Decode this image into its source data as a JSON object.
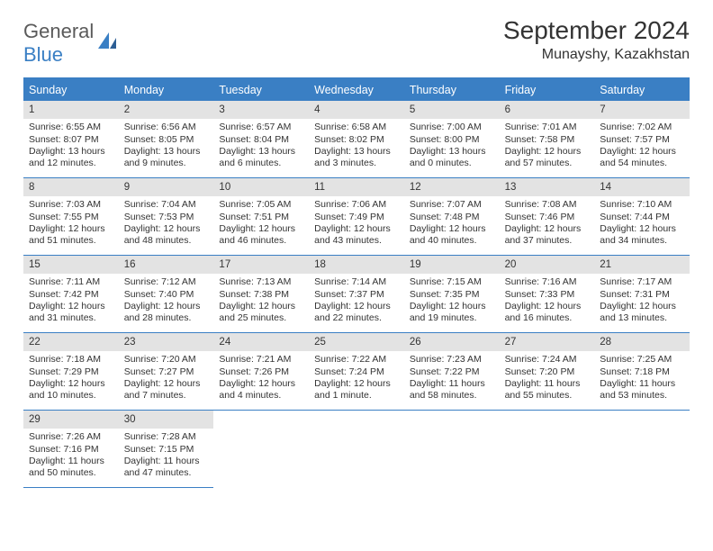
{
  "logo": {
    "part1": "General",
    "part2": "Blue"
  },
  "title": "September 2024",
  "location": "Munayshy, Kazakhstan",
  "colors": {
    "accent": "#3a7fc4",
    "header_bg": "#3a7fc4",
    "header_fg": "#ffffff",
    "daynum_bg": "#e3e3e3",
    "text": "#333333",
    "logo_gray": "#5a5a5a"
  },
  "fonts": {
    "title_size": 28,
    "location_size": 16,
    "dayheader_size": 12.5,
    "cell_size": 10.5,
    "daynum_size": 11.5
  },
  "day_headers": [
    "Sunday",
    "Monday",
    "Tuesday",
    "Wednesday",
    "Thursday",
    "Friday",
    "Saturday"
  ],
  "days": [
    {
      "n": "1",
      "sunrise": "6:55 AM",
      "sunset": "8:07 PM",
      "daylight": "13 hours and 12 minutes."
    },
    {
      "n": "2",
      "sunrise": "6:56 AM",
      "sunset": "8:05 PM",
      "daylight": "13 hours and 9 minutes."
    },
    {
      "n": "3",
      "sunrise": "6:57 AM",
      "sunset": "8:04 PM",
      "daylight": "13 hours and 6 minutes."
    },
    {
      "n": "4",
      "sunrise": "6:58 AM",
      "sunset": "8:02 PM",
      "daylight": "13 hours and 3 minutes."
    },
    {
      "n": "5",
      "sunrise": "7:00 AM",
      "sunset": "8:00 PM",
      "daylight": "13 hours and 0 minutes."
    },
    {
      "n": "6",
      "sunrise": "7:01 AM",
      "sunset": "7:58 PM",
      "daylight": "12 hours and 57 minutes."
    },
    {
      "n": "7",
      "sunrise": "7:02 AM",
      "sunset": "7:57 PM",
      "daylight": "12 hours and 54 minutes."
    },
    {
      "n": "8",
      "sunrise": "7:03 AM",
      "sunset": "7:55 PM",
      "daylight": "12 hours and 51 minutes."
    },
    {
      "n": "9",
      "sunrise": "7:04 AM",
      "sunset": "7:53 PM",
      "daylight": "12 hours and 48 minutes."
    },
    {
      "n": "10",
      "sunrise": "7:05 AM",
      "sunset": "7:51 PM",
      "daylight": "12 hours and 46 minutes."
    },
    {
      "n": "11",
      "sunrise": "7:06 AM",
      "sunset": "7:49 PM",
      "daylight": "12 hours and 43 minutes."
    },
    {
      "n": "12",
      "sunrise": "7:07 AM",
      "sunset": "7:48 PM",
      "daylight": "12 hours and 40 minutes."
    },
    {
      "n": "13",
      "sunrise": "7:08 AM",
      "sunset": "7:46 PM",
      "daylight": "12 hours and 37 minutes."
    },
    {
      "n": "14",
      "sunrise": "7:10 AM",
      "sunset": "7:44 PM",
      "daylight": "12 hours and 34 minutes."
    },
    {
      "n": "15",
      "sunrise": "7:11 AM",
      "sunset": "7:42 PM",
      "daylight": "12 hours and 31 minutes."
    },
    {
      "n": "16",
      "sunrise": "7:12 AM",
      "sunset": "7:40 PM",
      "daylight": "12 hours and 28 minutes."
    },
    {
      "n": "17",
      "sunrise": "7:13 AM",
      "sunset": "7:38 PM",
      "daylight": "12 hours and 25 minutes."
    },
    {
      "n": "18",
      "sunrise": "7:14 AM",
      "sunset": "7:37 PM",
      "daylight": "12 hours and 22 minutes."
    },
    {
      "n": "19",
      "sunrise": "7:15 AM",
      "sunset": "7:35 PM",
      "daylight": "12 hours and 19 minutes."
    },
    {
      "n": "20",
      "sunrise": "7:16 AM",
      "sunset": "7:33 PM",
      "daylight": "12 hours and 16 minutes."
    },
    {
      "n": "21",
      "sunrise": "7:17 AM",
      "sunset": "7:31 PM",
      "daylight": "12 hours and 13 minutes."
    },
    {
      "n": "22",
      "sunrise": "7:18 AM",
      "sunset": "7:29 PM",
      "daylight": "12 hours and 10 minutes."
    },
    {
      "n": "23",
      "sunrise": "7:20 AM",
      "sunset": "7:27 PM",
      "daylight": "12 hours and 7 minutes."
    },
    {
      "n": "24",
      "sunrise": "7:21 AM",
      "sunset": "7:26 PM",
      "daylight": "12 hours and 4 minutes."
    },
    {
      "n": "25",
      "sunrise": "7:22 AM",
      "sunset": "7:24 PM",
      "daylight": "12 hours and 1 minute."
    },
    {
      "n": "26",
      "sunrise": "7:23 AM",
      "sunset": "7:22 PM",
      "daylight": "11 hours and 58 minutes."
    },
    {
      "n": "27",
      "sunrise": "7:24 AM",
      "sunset": "7:20 PM",
      "daylight": "11 hours and 55 minutes."
    },
    {
      "n": "28",
      "sunrise": "7:25 AM",
      "sunset": "7:18 PM",
      "daylight": "11 hours and 53 minutes."
    },
    {
      "n": "29",
      "sunrise": "7:26 AM",
      "sunset": "7:16 PM",
      "daylight": "11 hours and 50 minutes."
    },
    {
      "n": "30",
      "sunrise": "7:28 AM",
      "sunset": "7:15 PM",
      "daylight": "11 hours and 47 minutes."
    }
  ],
  "labels": {
    "sunrise": "Sunrise:",
    "sunset": "Sunset:",
    "daylight": "Daylight:"
  }
}
